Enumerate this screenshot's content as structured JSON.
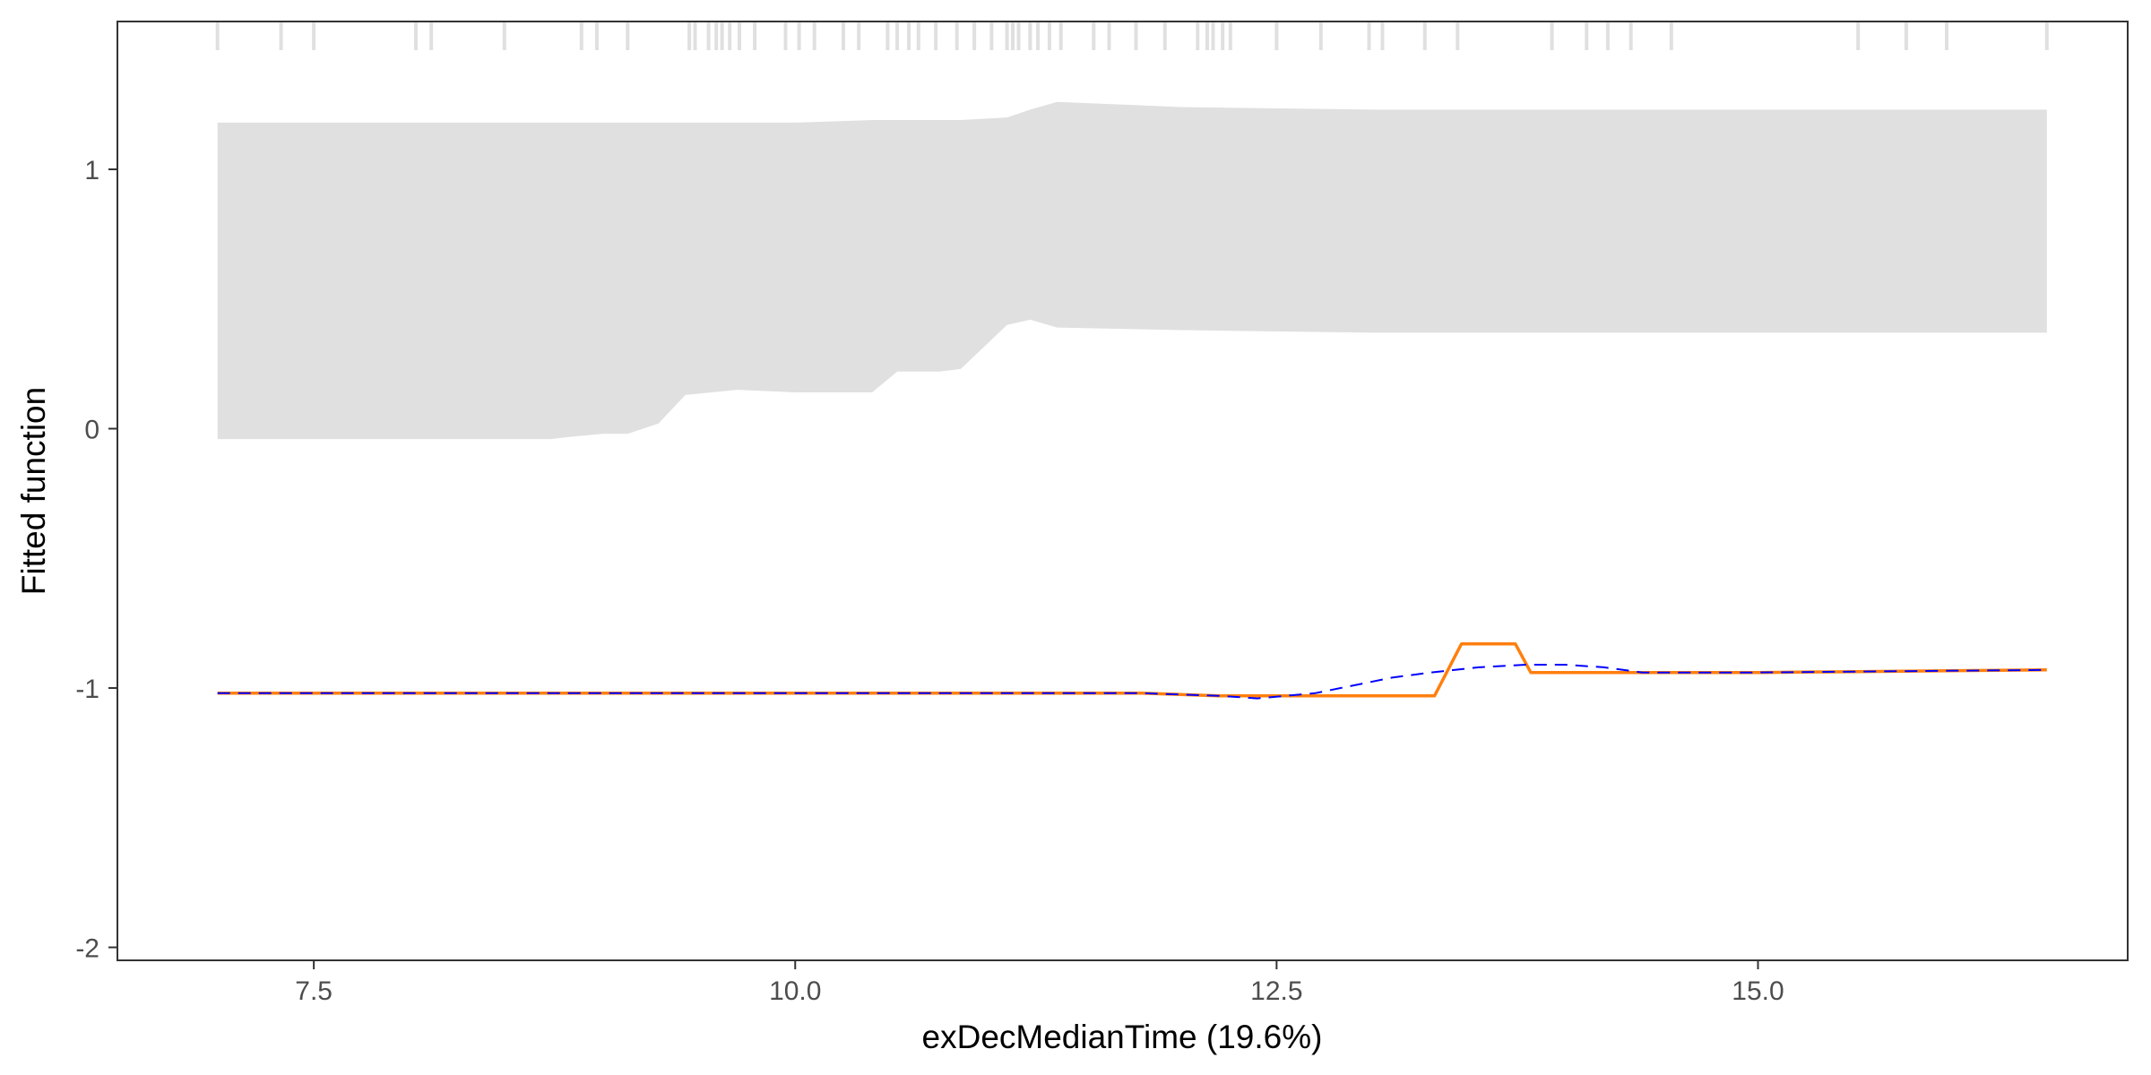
{
  "chart_data": {
    "type": "line",
    "title": "",
    "xlabel": "exDecMedianTime  (19.6%)",
    "ylabel": "Fitted function",
    "xlim": [
      6.48,
      16.92
    ],
    "ylim": [
      -2.05,
      1.57
    ],
    "xticks": [
      7.5,
      10.0,
      12.5,
      15.0
    ],
    "xtick_labels": [
      "7.5",
      "10.0",
      "12.5",
      "15.0"
    ],
    "yticks": [
      -2,
      -1,
      0,
      1
    ],
    "ytick_labels": [
      "-2",
      "-1",
      "0",
      "1"
    ],
    "grid": false,
    "legend": "none",
    "colors": {
      "band": "#e0e0e0",
      "rug": "#e0e0e0",
      "fitted": "#ff7f0e",
      "smooth": "#0000ff",
      "frame": "#333333"
    },
    "rug": [
      7.0,
      7.33,
      7.5,
      8.03,
      8.11,
      8.49,
      8.89,
      8.97,
      9.13,
      9.45,
      9.48,
      9.55,
      9.59,
      9.62,
      9.66,
      9.71,
      9.79,
      9.95,
      10.02,
      10.1,
      10.25,
      10.33,
      10.48,
      10.53,
      10.59,
      10.64,
      10.73,
      10.84,
      10.93,
      11.02,
      11.1,
      11.13,
      11.16,
      11.22,
      11.26,
      11.32,
      11.38,
      11.55,
      11.63,
      11.77,
      11.92,
      12.09,
      12.14,
      12.17,
      12.22,
      12.26,
      12.5,
      12.73,
      12.98,
      13.05,
      13.27,
      13.44,
      13.93,
      14.11,
      14.22,
      14.34,
      14.55,
      15.52,
      15.77,
      15.98,
      16.5
    ],
    "series": [
      {
        "kind": "band",
        "x": [
          7.0,
          8.0,
          8.6,
          8.73,
          8.85,
          9.0,
          9.13,
          9.29,
          9.43,
          9.7,
          10.0,
          10.4,
          10.53,
          10.75,
          10.86,
          11.1,
          11.22,
          11.36,
          12.0,
          13.0,
          14.0,
          15.0,
          16.5
        ],
        "upper": [
          1.18,
          1.18,
          1.18,
          1.18,
          1.18,
          1.18,
          1.18,
          1.18,
          1.18,
          1.18,
          1.18,
          1.19,
          1.19,
          1.19,
          1.19,
          1.2,
          1.23,
          1.26,
          1.24,
          1.23,
          1.23,
          1.23,
          1.23
        ],
        "lower": [
          -0.04,
          -0.04,
          -0.04,
          -0.04,
          -0.03,
          -0.02,
          -0.02,
          0.02,
          0.13,
          0.15,
          0.14,
          0.14,
          0.22,
          0.22,
          0.23,
          0.4,
          0.42,
          0.39,
          0.38,
          0.37,
          0.37,
          0.37,
          0.37
        ]
      },
      {
        "name": "",
        "kind": "line",
        "style": "solid",
        "x": [
          7.0,
          8.0,
          9.0,
          10.0,
          11.0,
          11.8,
          12.2,
          12.4,
          12.8,
          13.0,
          13.32,
          13.46,
          13.6,
          13.74,
          13.82,
          14.0,
          15.0,
          16.5
        ],
        "y": [
          -1.02,
          -1.02,
          -1.02,
          -1.02,
          -1.02,
          -1.02,
          -1.03,
          -1.03,
          -1.03,
          -1.03,
          -1.03,
          -0.83,
          -0.83,
          -0.83,
          -0.94,
          -0.94,
          -0.94,
          -0.93
        ]
      },
      {
        "name": "",
        "kind": "line",
        "style": "dashed",
        "x": [
          7.0,
          8.0,
          9.0,
          10.0,
          11.0,
          11.8,
          12.2,
          12.4,
          12.55,
          12.7,
          12.9,
          13.1,
          13.3,
          13.55,
          13.8,
          14.0,
          14.2,
          14.4,
          14.6,
          15.0,
          16.5
        ],
        "y": [
          -1.02,
          -1.02,
          -1.02,
          -1.02,
          -1.02,
          -1.02,
          -1.03,
          -1.04,
          -1.03,
          -1.02,
          -0.99,
          -0.96,
          -0.94,
          -0.92,
          -0.91,
          -0.91,
          -0.92,
          -0.94,
          -0.94,
          -0.94,
          -0.93
        ]
      }
    ]
  }
}
